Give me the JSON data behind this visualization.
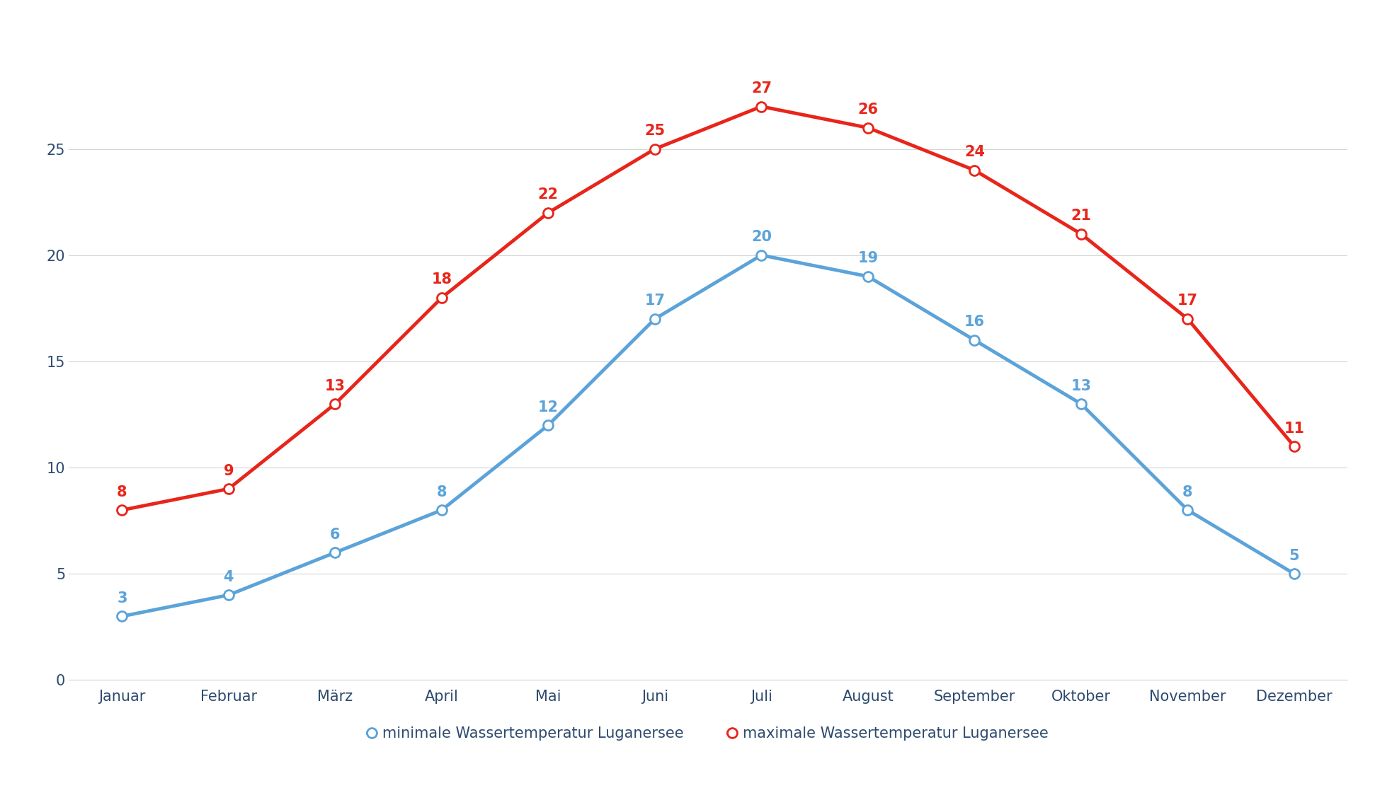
{
  "months": [
    "Januar",
    "Februar",
    "März",
    "April",
    "Mai",
    "Juni",
    "Juli",
    "August",
    "September",
    "Oktober",
    "November",
    "Dezember"
  ],
  "min_temps": [
    3,
    4,
    6,
    8,
    12,
    17,
    20,
    19,
    16,
    13,
    8,
    5
  ],
  "max_temps": [
    8,
    9,
    13,
    18,
    22,
    25,
    27,
    26,
    24,
    21,
    17,
    11
  ],
  "min_color": "#5ba3d9",
  "max_color": "#e8251a",
  "min_label": "minimale Wassertemperatur Luganersee",
  "max_label": "maximale Wassertemperatur Luganersee",
  "ylim": [
    0,
    29
  ],
  "yticks": [
    0,
    5,
    10,
    15,
    20,
    25
  ],
  "background_color": "#ffffff",
  "grid_color": "#d4d4d4",
  "tick_label_color": "#2d4a6e",
  "annotation_color_min": "#5ba3d9",
  "annotation_color_max": "#e8251a",
  "line_width": 3.5,
  "marker_size": 10,
  "font_size_ticks": 15,
  "font_size_legend": 15,
  "font_size_annotations": 15
}
